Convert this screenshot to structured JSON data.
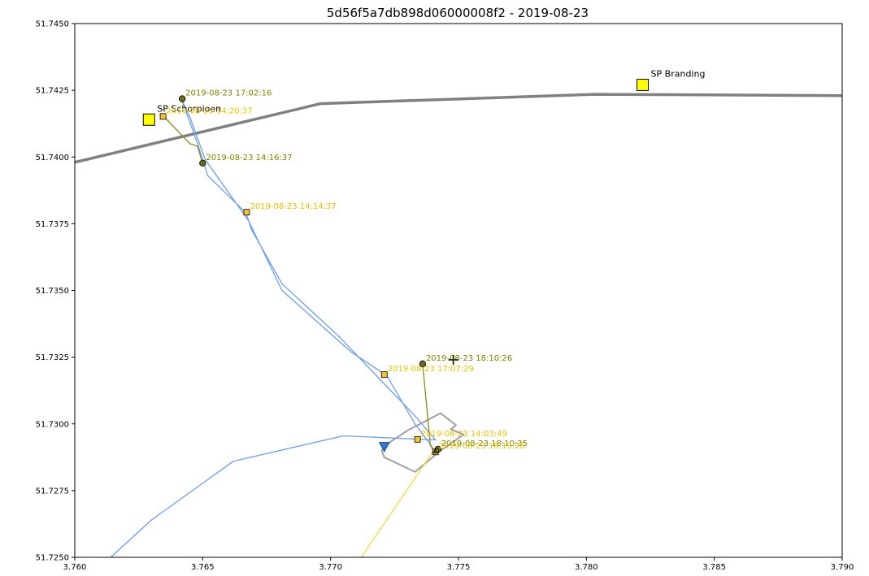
{
  "chart_data": {
    "type": "scatter",
    "title": "5d56f5a7db898d06000008f2 - 2019-08-23",
    "xlabel": "",
    "ylabel": "",
    "xlim": [
      3.76,
      3.79
    ],
    "ylim": [
      51.725,
      51.745
    ],
    "xticks": [
      3.76,
      3.765,
      3.77,
      3.775,
      3.78,
      3.785,
      3.79
    ],
    "xtick_labels": [
      "3.760",
      "3.765",
      "3.770",
      "3.775",
      "3.780",
      "3.785",
      "3.790"
    ],
    "yticks": [
      51.725,
      51.7275,
      51.73,
      51.7325,
      51.735,
      51.7375,
      51.74,
      51.7425,
      51.745
    ],
    "ytick_labels": [
      "51.7250",
      "51.7275",
      "51.7300",
      "51.7325",
      "51.7350",
      "51.7375",
      "51.7400",
      "51.7425",
      "51.7450"
    ],
    "grid": false,
    "colors": {
      "road": "#808080",
      "blue_track": "#6f9de6",
      "olive_track": "#8a8a20",
      "yellow_track": "#f5d742",
      "outline": "#a0a0a0",
      "stop_fill": "#ffff00",
      "yellow_label": "#e6c200",
      "olive_label": "#808000",
      "olive_marker": "#6b6b1a",
      "blue_marker": "#2a7fde",
      "dark_marker": "#4a4a10"
    },
    "road": [
      [
        3.76,
        51.7398
      ],
      [
        3.7696,
        51.742
      ],
      [
        3.7803,
        51.74235
      ],
      [
        3.79,
        51.7423
      ]
    ],
    "blue_track": [
      [
        3.7614,
        51.725
      ],
      [
        3.763,
        51.7264
      ],
      [
        3.7662,
        51.7286
      ],
      [
        3.7705,
        51.72955
      ],
      [
        3.7741,
        51.7294
      ],
      [
        3.7733,
        51.7303
      ],
      [
        3.7721,
        51.7315
      ],
      [
        3.7703,
        51.7333
      ],
      [
        3.7681,
        51.73525
      ],
      [
        3.7669,
        51.7373
      ],
      [
        3.7667,
        51.7379
      ],
      [
        3.7652,
        51.7393
      ],
      [
        3.7648,
        51.7405
      ],
      [
        3.7642,
        51.7421
      ],
      [
        3.7645,
        51.7415
      ],
      [
        3.7651,
        51.7399
      ],
      [
        3.7668,
        51.7376
      ],
      [
        3.7681,
        51.735
      ],
      [
        3.7708,
        51.7327
      ],
      [
        3.7722,
        51.7318
      ],
      [
        3.7733,
        51.73
      ],
      [
        3.774,
        51.7291
      ]
    ],
    "olive_track_1": [
      [
        3.7635,
        51.7415
      ],
      [
        3.7645,
        51.7405
      ],
      [
        3.7648,
        51.7404
      ],
      [
        3.765,
        51.73975
      ]
    ],
    "olive_track_2": [
      [
        3.7736,
        51.73225
      ],
      [
        3.7739,
        51.7292
      ],
      [
        3.7741,
        51.7289
      ]
    ],
    "yellow_track": [
      [
        3.7712,
        51.725
      ],
      [
        3.7741,
        51.7291
      ]
    ],
    "outline_polygon": [
      [
        3.772,
        51.729
      ],
      [
        3.7723,
        51.7293
      ],
      [
        3.773,
        51.72975
      ],
      [
        3.7743,
        51.7304
      ],
      [
        3.7749,
        51.72995
      ],
      [
        3.7747,
        51.7298
      ],
      [
        3.7752,
        51.7296
      ],
      [
        3.7743,
        51.729
      ],
      [
        3.7733,
        51.7282
      ],
      [
        3.7721,
        51.72875
      ]
    ],
    "stops": [
      {
        "name": "SP Schorpioen",
        "x": 3.7629,
        "y": 51.7414
      },
      {
        "name": "SP Branding",
        "x": 3.7822,
        "y": 51.7427
      }
    ],
    "points": [
      {
        "label": "2019-08-23 17:02:16",
        "x": 3.7642,
        "y": 51.74218,
        "marker": "circle",
        "color": "olive"
      },
      {
        "label": "2019-08-23 14:20:37",
        "x": 3.76345,
        "y": 51.74152,
        "marker": "square",
        "color": "yellow"
      },
      {
        "label": "2019-08-23 14:16:37",
        "x": 3.765,
        "y": 51.73977,
        "marker": "circle",
        "color": "olive"
      },
      {
        "label": "2019-08-23 14:14:37",
        "x": 3.76672,
        "y": 51.73793,
        "marker": "square",
        "color": "yellow"
      },
      {
        "label": "2019-08-23 18:10:26",
        "x": 3.7736,
        "y": 51.73225,
        "marker": "circle",
        "color": "olive"
      },
      {
        "label": "2019-08-23 17:07:29",
        "x": 3.7721,
        "y": 51.73185,
        "marker": "square",
        "color": "yellow"
      },
      {
        "label": "2019-08-23 14:03:49",
        "x": 3.7734,
        "y": 51.72942,
        "marker": "square",
        "color": "yellow"
      },
      {
        "label": "2019-08-23 18:10:35",
        "x": 3.7742,
        "y": 51.72905,
        "marker": "circle",
        "color": "olive"
      },
      {
        "label": "2019-08-23 18:13:28",
        "x": 3.7741,
        "y": 51.72895,
        "marker": "square",
        "color": "yellow"
      }
    ],
    "labels_extra": [
      "2019-08-23 18:10:26"
    ],
    "end_marker": {
      "x": 3.7721,
      "y": 51.72915
    },
    "plus_marker": {
      "x": 3.7748,
      "y": 51.7324
    },
    "dark_triangle": {
      "x": 3.7741,
      "y": 51.729
    }
  }
}
